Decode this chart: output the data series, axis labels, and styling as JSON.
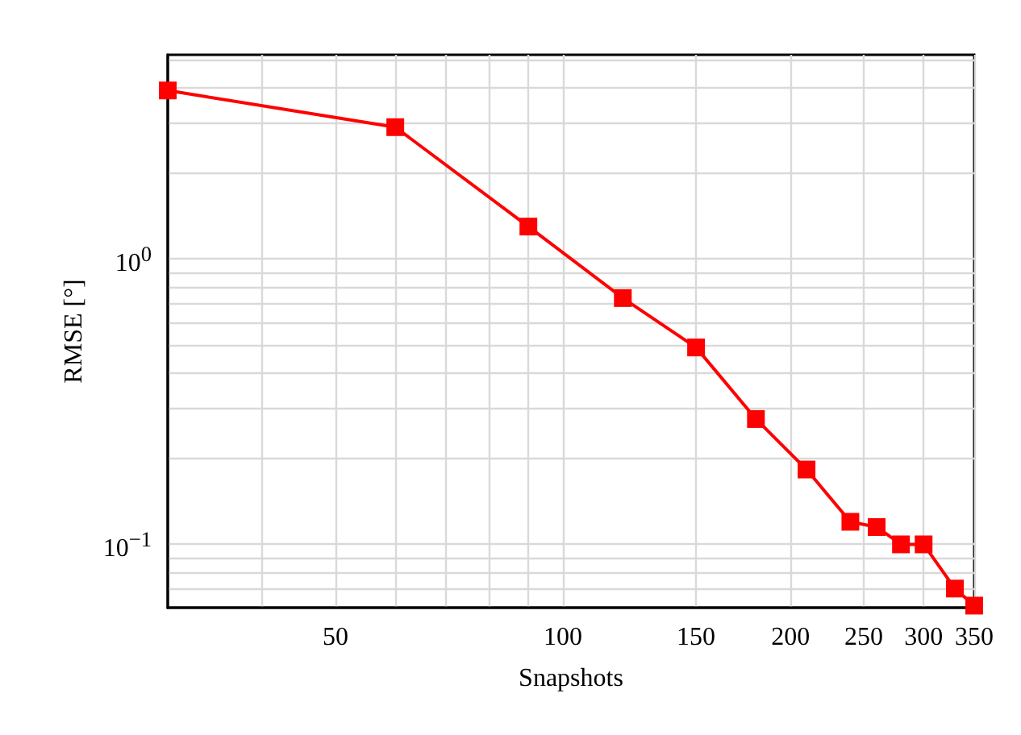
{
  "chart_data": {
    "type": "line",
    "xlabel": "Snapshots",
    "ylabel": "RMSE [°]",
    "log": "xy",
    "grid": true,
    "marker": "square",
    "line_style": "solid",
    "x": [
      30,
      60,
      90,
      120,
      150,
      180,
      210,
      240,
      260,
      280,
      300,
      330,
      350
    ],
    "series": [
      {
        "color": "#ff0000",
        "values": [
          3.9,
          2.9,
          1.3,
          0.73,
          0.49,
          0.275,
          0.183,
          0.12,
          0.115,
          0.1,
          0.1,
          0.07,
          0.061
        ]
      }
    ],
    "xlim": [
      30,
      350
    ],
    "xticks": [
      50,
      100,
      150,
      200,
      250,
      300,
      350
    ],
    "ylim": [
      0.06,
      5.2
    ],
    "yticks": [
      {
        "value": 1,
        "label": "10$^{0}$"
      },
      {
        "value": 0.1,
        "label": "10$^{−1}$"
      }
    ]
  }
}
